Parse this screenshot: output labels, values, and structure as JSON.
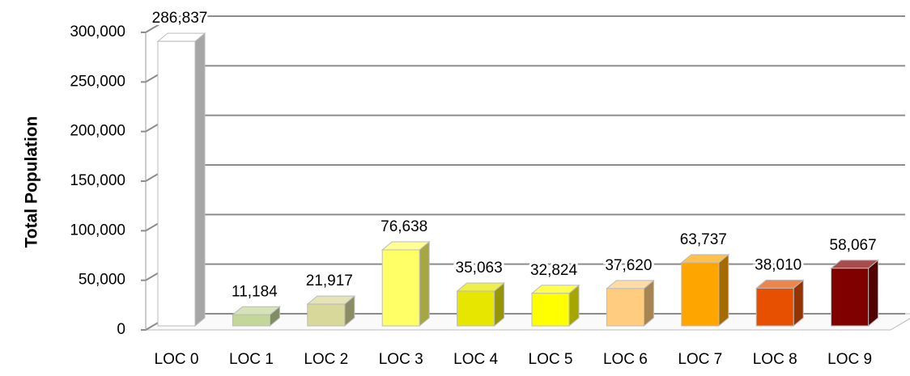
{
  "chart_data": {
    "type": "bar3d",
    "y_label": "Total Population",
    "categories": [
      "LOC 0",
      "LOC 1",
      "LOC 2",
      "LOC 3",
      "LOC 4",
      "LOC 5",
      "LOC 6",
      "LOC 7",
      "LOC 8",
      "LOC 9"
    ],
    "values": [
      286837,
      11184,
      21917,
      76638,
      35063,
      32824,
      37620,
      63737,
      38010,
      58067
    ],
    "value_labels": [
      "286,837",
      "11,184",
      "21,917",
      "76,638",
      "35,063",
      "32,824",
      "37,620",
      "63,737",
      "38,010",
      "58,067"
    ],
    "colors": [
      "#ffffff",
      "#c4d79b",
      "#d8d89a",
      "#ffff66",
      "#e6e600",
      "#ffff00",
      "#ffcc80",
      "#ffa500",
      "#e65000",
      "#800000"
    ],
    "ylim": [
      0,
      300000
    ],
    "yticks": [
      0,
      {
        "value": 50000,
        "label": "50,000"
      },
      {
        "value": 100000,
        "label": "100,000"
      },
      {
        "value": 150000,
        "label": "150,000"
      },
      {
        "value": 200000,
        "label": "200,000"
      },
      {
        "value": 250000,
        "label": "250,000"
      },
      {
        "value": 300000,
        "label": "300,000"
      }
    ],
    "grid": true
  }
}
